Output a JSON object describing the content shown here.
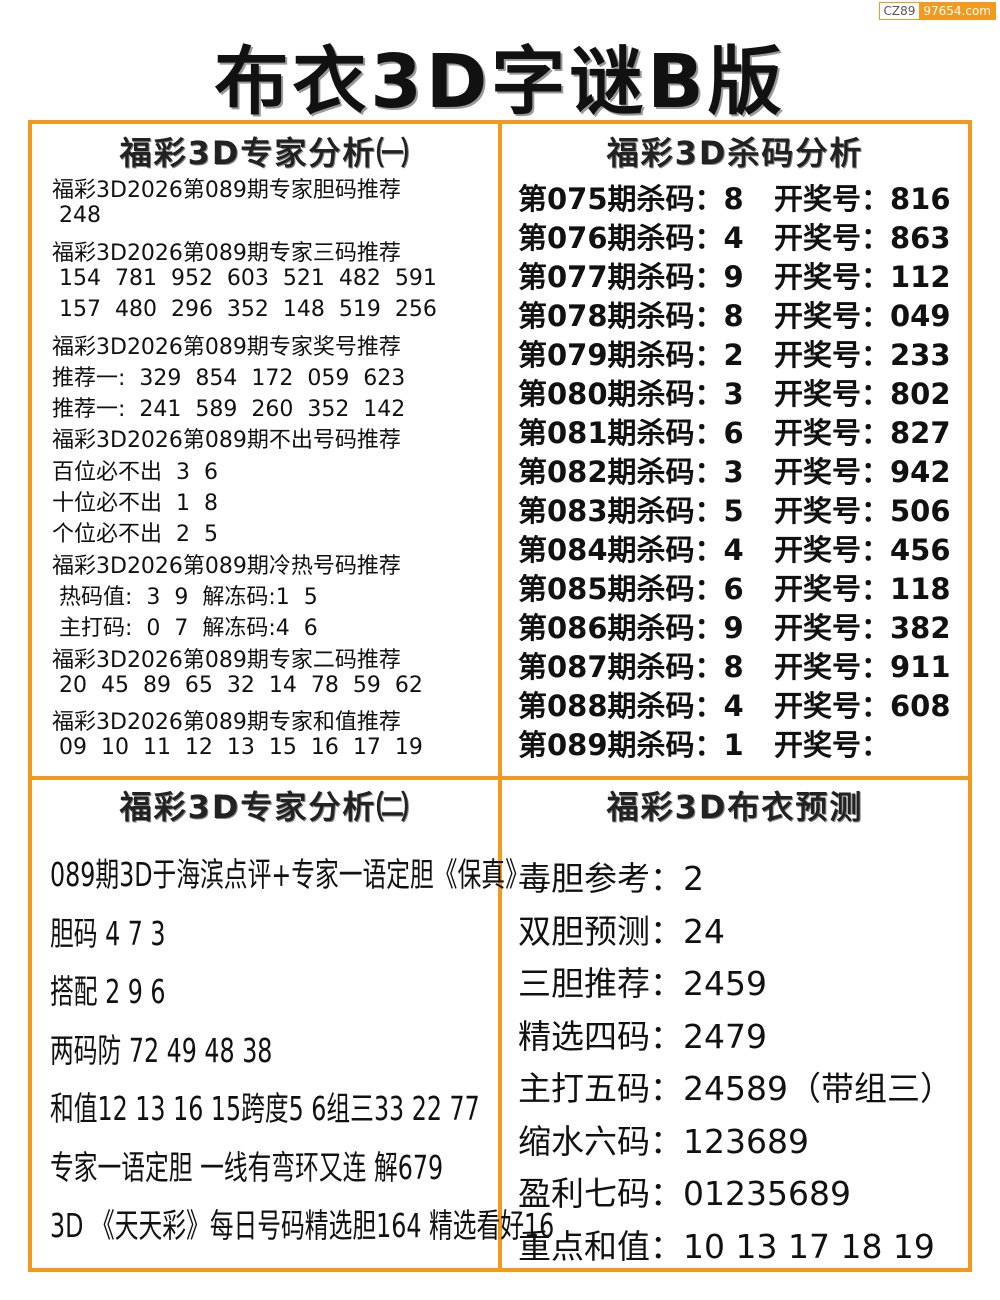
{
  "watermark": {
    "left": "CZ89",
    "right": "97654.com"
  },
  "title": "布衣3D字谜B版",
  "panels": [
    {
      "heading": "福彩3D专家分析㈠",
      "lines": [
        "福彩3D2026第089期专家胆码推荐",
        " 248",
        "福彩3D2026第089期专家三码推荐",
        " 154  781  952  603  521  482  591",
        " 157  480  296  352  148  519  256",
        "福彩3D2026第089期专家奖号推荐",
        "推荐一:  329  854  172  059  623",
        "推荐一:  241  589  260  352  142",
        "福彩3D2026第089期不出号码推荐",
        "百位必不出  3  6",
        "十位必不出  1  8",
        "个位必不出  2  5",
        "福彩3D2026第089期冷热号码推荐",
        " 热码值:  3  9  解冻码:1  5",
        " 主打码:  0  7  解冻码:4  6",
        "福彩3D2026第089期专家二码推荐",
        " 20  45  89  65  32  14  78  59  62",
        "福彩3D2026第089期专家和值推荐",
        " 09  10  11  12  13  15  16  17  19"
      ]
    },
    {
      "heading": "福彩3D杀码分析",
      "rows": [
        [
          "第075期杀码：8",
          "开奖号：816"
        ],
        [
          "第076期杀码：4",
          "开奖号：863"
        ],
        [
          "第077期杀码：9",
          "开奖号：112"
        ],
        [
          "第078期杀码：8",
          "开奖号：049"
        ],
        [
          "第079期杀码：2",
          "开奖号：233"
        ],
        [
          "第080期杀码：3",
          "开奖号：802"
        ],
        [
          "第081期杀码：6",
          "开奖号：827"
        ],
        [
          "第082期杀码：3",
          "开奖号：942"
        ],
        [
          "第083期杀码：5",
          "开奖号：506"
        ],
        [
          "第084期杀码：4",
          "开奖号：456"
        ],
        [
          "第085期杀码：6",
          "开奖号：118"
        ],
        [
          "第086期杀码：9",
          "开奖号：382"
        ],
        [
          "第087期杀码：8",
          "开奖号：911"
        ],
        [
          "第088期杀码：4",
          "开奖号：608"
        ],
        [
          "第089期杀码：1",
          "开奖号："
        ]
      ]
    },
    {
      "heading": "福彩3D专家分析㈡",
      "lines": [
        "089期3D于海滨点评+专家一语定胆《保真》",
        "胆码 4 7 3",
        "搭配 2 9 6",
        "两码防 72 49 48 38",
        "和值12 13 16 15跨度5 6组三33 22 77",
        "专家一语定胆 一线有弯环又连 解679",
        "3D 《天天彩》每日号码精选胆164 精选看好16"
      ]
    },
    {
      "heading": "福彩3D布衣预测",
      "lines": [
        "毒胆参考：2",
        "双胆预测：24",
        "三胆推荐：2459",
        "精选四码：2479",
        "主打五码：24589（带组三）",
        "缩水六码：123689",
        "盈利七码：01235689",
        "重点和值：10 13 17 18 19"
      ]
    }
  ]
}
